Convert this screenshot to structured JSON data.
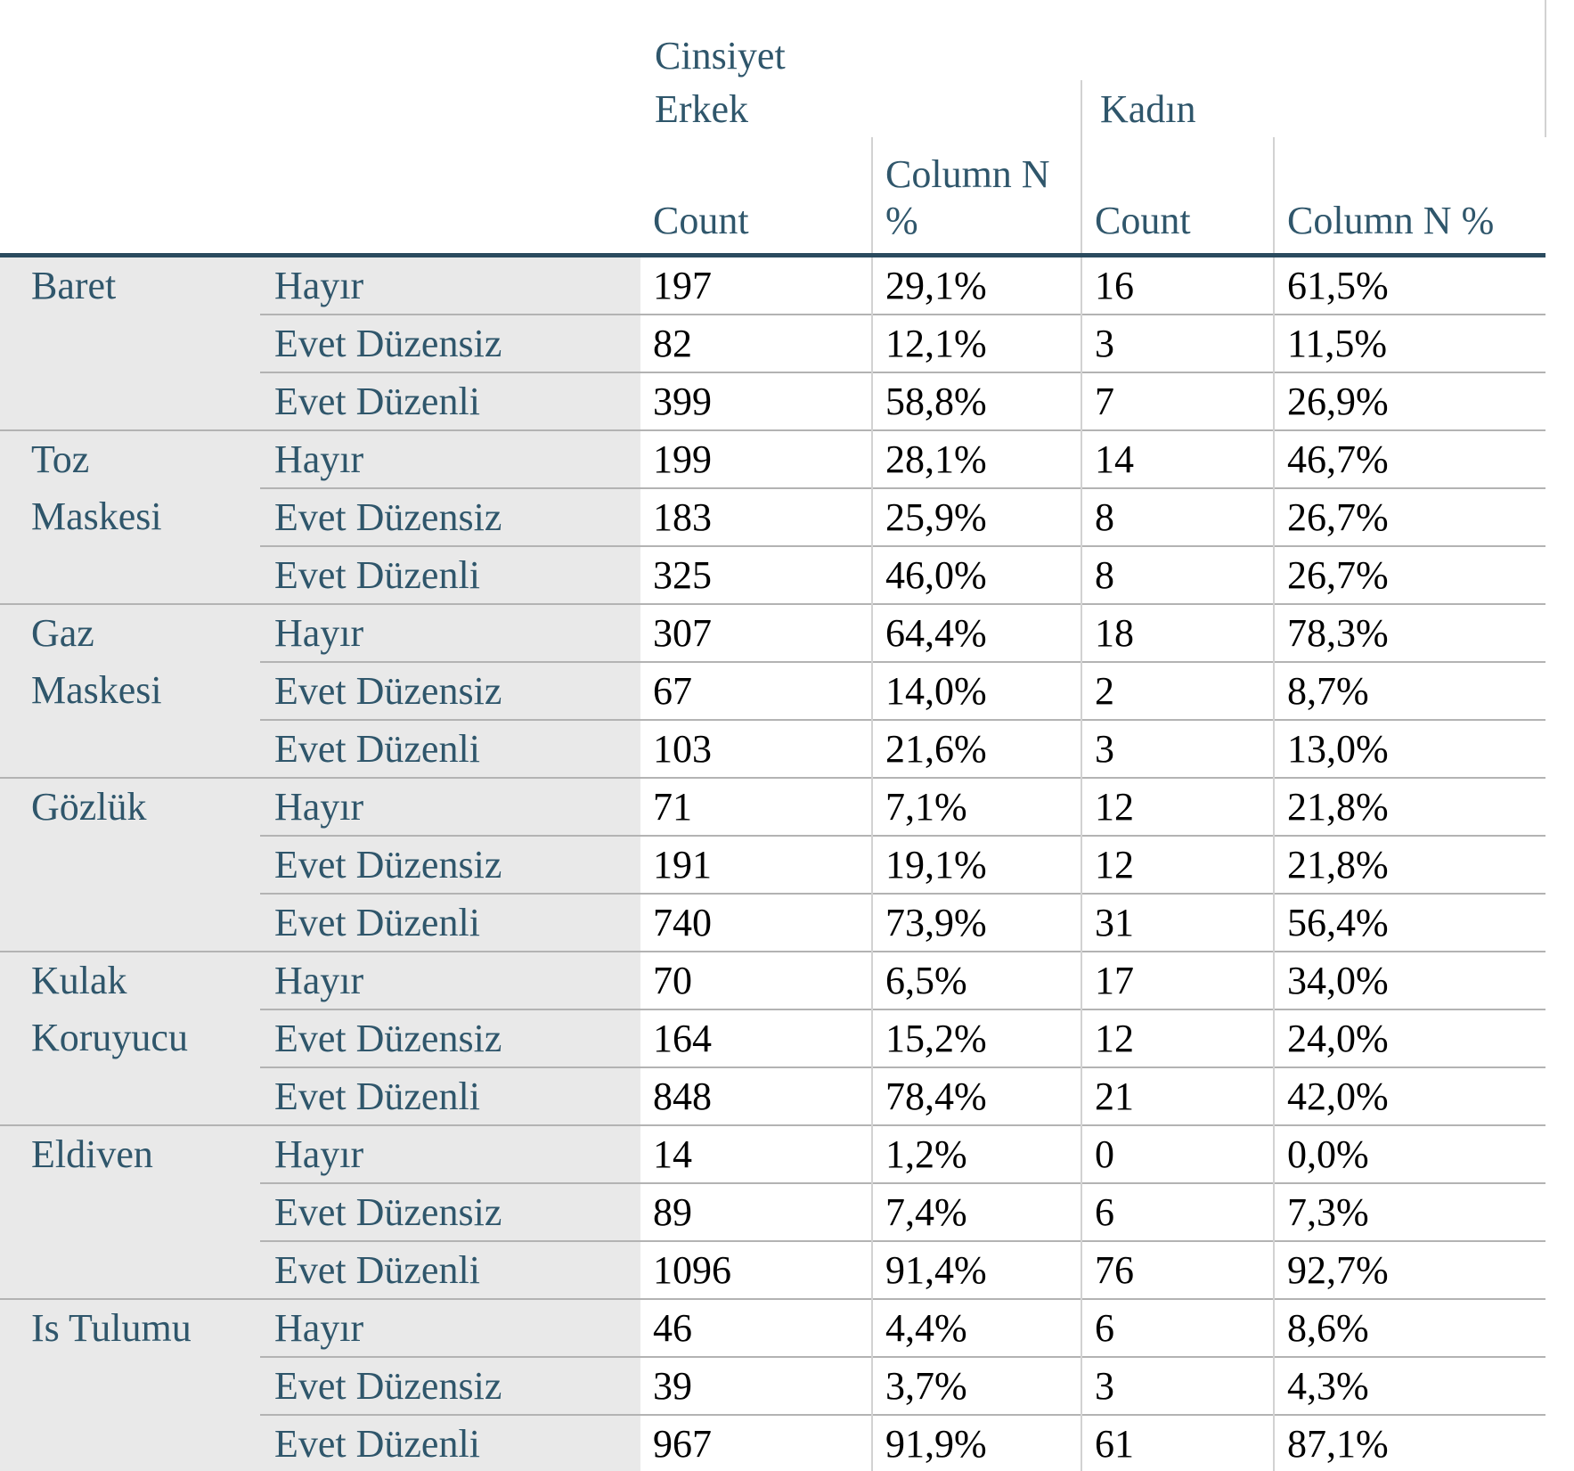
{
  "header": {
    "spanner": "Cinsiyet",
    "groups": [
      {
        "label": "Erkek",
        "count_header": "Count",
        "pct_header": "Column N %"
      },
      {
        "label": "Kadın",
        "count_header": "Count",
        "pct_header": "Column N %"
      }
    ]
  },
  "colors": {
    "header_text": "#2f566b",
    "label_bg": "#e9e9e9",
    "dark_border": "#2b4b5f",
    "row_line": "#b3b3b3",
    "col_line": "#d2d2d2"
  },
  "rows": [
    {
      "category": "Baret",
      "items": [
        {
          "label": "Hayır",
          "erkek_count": "197",
          "erkek_pct": "29,1%",
          "kadin_count": "16",
          "kadin_pct": "61,5%"
        },
        {
          "label": "Evet Düzensiz",
          "erkek_count": "82",
          "erkek_pct": "12,1%",
          "kadin_count": "3",
          "kadin_pct": "11,5%"
        },
        {
          "label": "Evet Düzenli",
          "erkek_count": "399",
          "erkek_pct": "58,8%",
          "kadin_count": "7",
          "kadin_pct": "26,9%"
        }
      ]
    },
    {
      "category": "Toz Maskesi",
      "items": [
        {
          "label": "Hayır",
          "erkek_count": "199",
          "erkek_pct": "28,1%",
          "kadin_count": "14",
          "kadin_pct": "46,7%"
        },
        {
          "label": "Evet Düzensiz",
          "erkek_count": "183",
          "erkek_pct": "25,9%",
          "kadin_count": "8",
          "kadin_pct": "26,7%"
        },
        {
          "label": "Evet Düzenli",
          "erkek_count": "325",
          "erkek_pct": "46,0%",
          "kadin_count": "8",
          "kadin_pct": "26,7%"
        }
      ]
    },
    {
      "category": "Gaz Maskesi",
      "items": [
        {
          "label": "Hayır",
          "erkek_count": "307",
          "erkek_pct": "64,4%",
          "kadin_count": "18",
          "kadin_pct": "78,3%"
        },
        {
          "label": "Evet Düzensiz",
          "erkek_count": "67",
          "erkek_pct": "14,0%",
          "kadin_count": "2",
          "kadin_pct": "8,7%"
        },
        {
          "label": "Evet Düzenli",
          "erkek_count": "103",
          "erkek_pct": "21,6%",
          "kadin_count": "3",
          "kadin_pct": "13,0%"
        }
      ]
    },
    {
      "category": "Gözlük",
      "items": [
        {
          "label": "Hayır",
          "erkek_count": "71",
          "erkek_pct": "7,1%",
          "kadin_count": "12",
          "kadin_pct": "21,8%"
        },
        {
          "label": "Evet Düzensiz",
          "erkek_count": "191",
          "erkek_pct": "19,1%",
          "kadin_count": "12",
          "kadin_pct": "21,8%"
        },
        {
          "label": "Evet Düzenli",
          "erkek_count": "740",
          "erkek_pct": "73,9%",
          "kadin_count": "31",
          "kadin_pct": "56,4%"
        }
      ]
    },
    {
      "category": "Kulak Koruyucu",
      "items": [
        {
          "label": "Hayır",
          "erkek_count": "70",
          "erkek_pct": "6,5%",
          "kadin_count": "17",
          "kadin_pct": "34,0%"
        },
        {
          "label": "Evet Düzensiz",
          "erkek_count": "164",
          "erkek_pct": "15,2%",
          "kadin_count": "12",
          "kadin_pct": "24,0%"
        },
        {
          "label": "Evet Düzenli",
          "erkek_count": "848",
          "erkek_pct": "78,4%",
          "kadin_count": "21",
          "kadin_pct": "42,0%"
        }
      ]
    },
    {
      "category": "Eldiven",
      "items": [
        {
          "label": "Hayır",
          "erkek_count": "14",
          "erkek_pct": "1,2%",
          "kadin_count": "0",
          "kadin_pct": "0,0%"
        },
        {
          "label": "Evet Düzensiz",
          "erkek_count": "89",
          "erkek_pct": "7,4%",
          "kadin_count": "6",
          "kadin_pct": "7,3%"
        },
        {
          "label": "Evet Düzenli",
          "erkek_count": "1096",
          "erkek_pct": "91,4%",
          "kadin_count": "76",
          "kadin_pct": "92,7%"
        }
      ]
    },
    {
      "category": "Is Tulumu",
      "items": [
        {
          "label": "Hayır",
          "erkek_count": "46",
          "erkek_pct": "4,4%",
          "kadin_count": "6",
          "kadin_pct": "8,6%"
        },
        {
          "label": "Evet Düzensiz",
          "erkek_count": "39",
          "erkek_pct": "3,7%",
          "kadin_count": "3",
          "kadin_pct": "4,3%"
        },
        {
          "label": "Evet Düzenli",
          "erkek_count": "967",
          "erkek_pct": "91,9%",
          "kadin_count": "61",
          "kadin_pct": "87,1%"
        }
      ]
    }
  ]
}
